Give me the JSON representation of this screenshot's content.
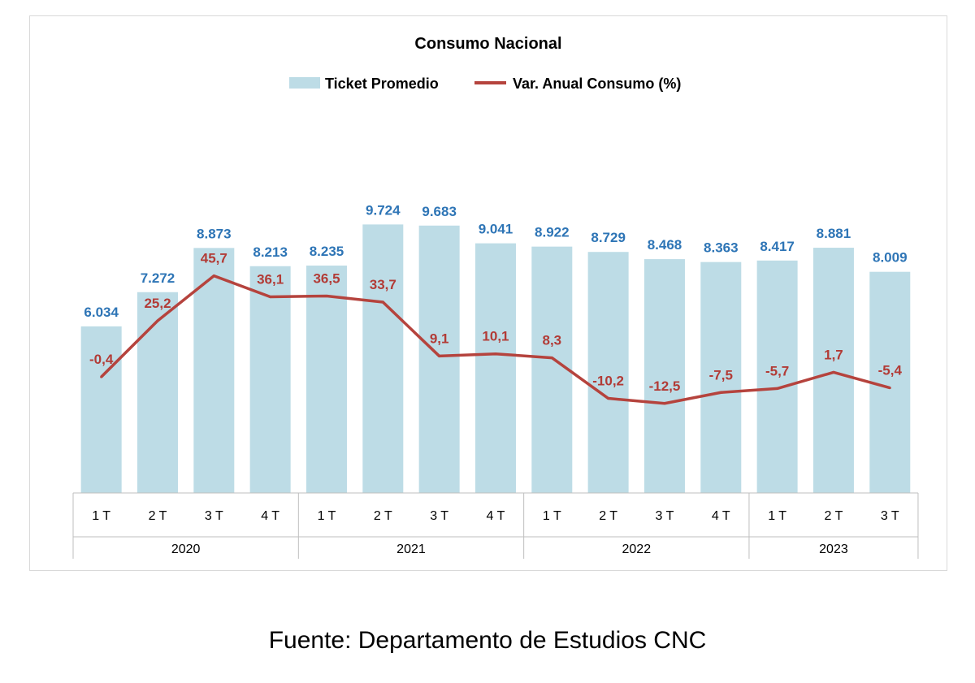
{
  "chart_data": {
    "type": "bar",
    "title": "Consumo Nacional",
    "legend": [
      "Ticket Promedio",
      "Var. Anual Consumo (%)"
    ],
    "legend_position": "top",
    "groups": [
      {
        "label": "2020",
        "categories": [
          "1 T",
          "2 T",
          "3 T",
          "4 T"
        ]
      },
      {
        "label": "2021",
        "categories": [
          "1 T",
          "2 T",
          "3 T",
          "4 T"
        ]
      },
      {
        "label": "2022",
        "categories": [
          "1 T",
          "2 T",
          "3 T",
          "4 T"
        ]
      },
      {
        "label": "2023",
        "categories": [
          "1 T",
          "2 T",
          "3 T"
        ]
      }
    ],
    "series": [
      {
        "name": "Ticket Promedio",
        "type": "bar",
        "color": "#bddce6",
        "label_color": "#2e75b6",
        "values": [
          6034,
          7272,
          8873,
          8213,
          8235,
          9724,
          9683,
          9041,
          8922,
          8729,
          8468,
          8363,
          8417,
          8881,
          8009
        ],
        "labels": [
          "6.034",
          "7.272",
          "8.873",
          "8.213",
          "8.235",
          "9.724",
          "9.683",
          "9.041",
          "8.922",
          "8.729",
          "8.468",
          "8.363",
          "8.417",
          "8.881",
          "8.009"
        ]
      },
      {
        "name": "Var. Anual Consumo (%)",
        "type": "line",
        "color": "#b5433d",
        "label_color": "#b23b36",
        "values": [
          -0.4,
          25.2,
          45.7,
          36.1,
          36.5,
          33.7,
          9.1,
          10.1,
          8.3,
          -10.2,
          -12.5,
          -7.5,
          -5.7,
          1.7,
          -5.4
        ],
        "labels": [
          "-0,4",
          "25,2",
          "45,7",
          "36,1",
          "36,5",
          "33,7",
          "9,1",
          "10,1",
          "8,3",
          "-10,2",
          "-12,5",
          "-7,5",
          "-5,7",
          "1,7",
          "-5,4"
        ]
      }
    ],
    "grid": false
  },
  "source": "Fuente: Departamento de Estudios CNC"
}
